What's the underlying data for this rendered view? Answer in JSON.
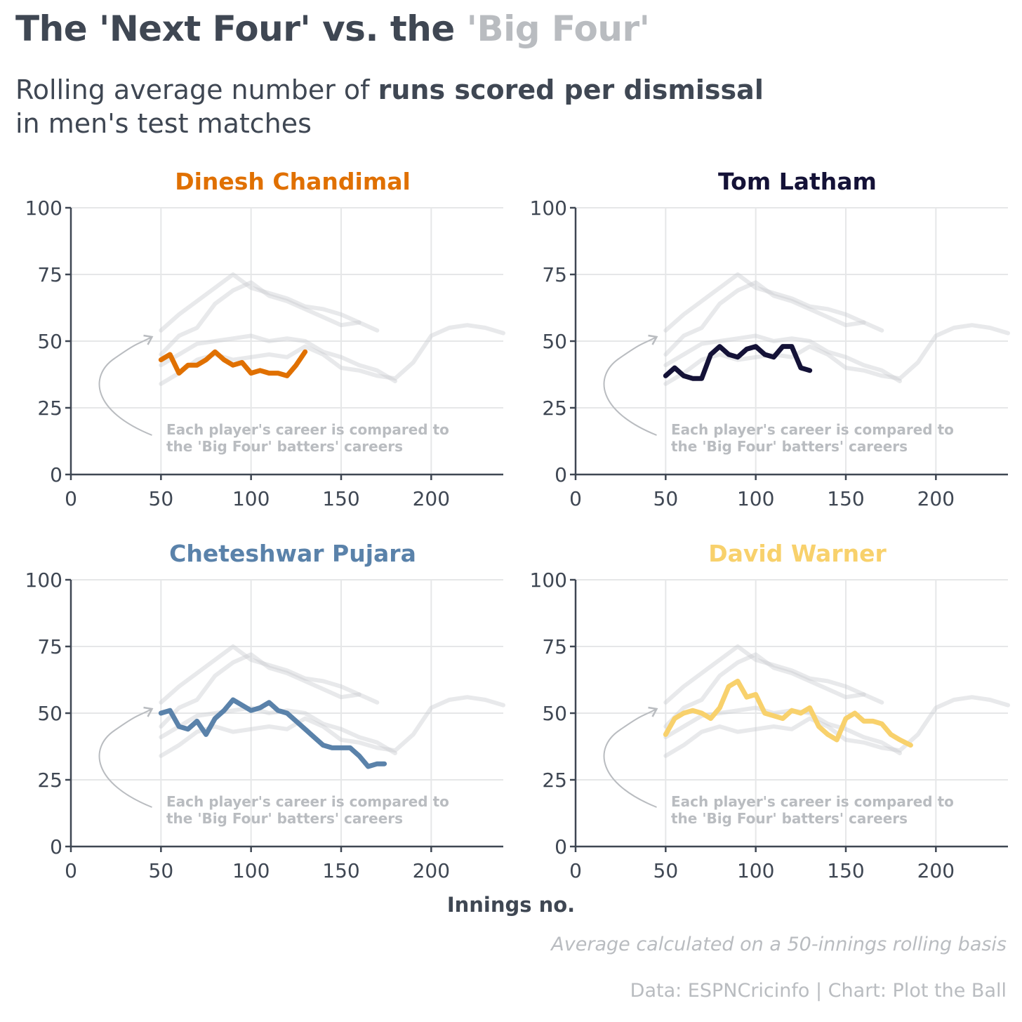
{
  "title": {
    "part1": "The 'Next Four' vs. the ",
    "part2": "'Big Four'"
  },
  "subtitle": {
    "part1": "Rolling average number of ",
    "bold": "runs scored per dismissal",
    "part2": "in men's test matches"
  },
  "annotation": {
    "line1": "Each player's career is compared to",
    "line2": "the 'Big Four' batters' careers"
  },
  "x_axis_label": "Innings no.",
  "note": "Average calculated on a 50-innings rolling basis",
  "source": "Data: ESPNCricinfo | Chart: Plot the Ball",
  "colors": {
    "text": "#3f4753",
    "muted": "#b9bcc0",
    "grid": "#e6e7e8",
    "big_four": "#c8cbcf"
  },
  "chart_data": [
    {
      "type": "line",
      "title": "Dinesh Chandimal",
      "color": "#e07000",
      "xlim": [
        0,
        240
      ],
      "ylim": [
        0,
        100
      ],
      "xticks": [
        0,
        50,
        100,
        150,
        200
      ],
      "yticks": [
        0,
        25,
        50,
        75,
        100
      ],
      "x": [
        50,
        55,
        60,
        65,
        70,
        75,
        80,
        85,
        90,
        95,
        100,
        105,
        110,
        115,
        120,
        125,
        130
      ],
      "y": [
        43,
        45,
        38,
        41,
        41,
        43,
        46,
        43,
        41,
        42,
        38,
        39,
        38,
        38,
        37,
        41,
        46
      ]
    },
    {
      "type": "line",
      "title": "Tom Latham",
      "color": "#141237",
      "xlim": [
        0,
        240
      ],
      "ylim": [
        0,
        100
      ],
      "xticks": [
        0,
        50,
        100,
        150,
        200
      ],
      "yticks": [
        0,
        25,
        50,
        75,
        100
      ],
      "x": [
        50,
        55,
        60,
        65,
        70,
        75,
        80,
        85,
        90,
        95,
        100,
        105,
        110,
        115,
        120,
        125,
        130
      ],
      "y": [
        37,
        40,
        37,
        36,
        36,
        45,
        48,
        45,
        44,
        47,
        48,
        45,
        44,
        48,
        48,
        40,
        39
      ]
    },
    {
      "type": "line",
      "title": "Cheteshwar Pujara",
      "color": "#5a82aa",
      "xlim": [
        0,
        240
      ],
      "ylim": [
        0,
        100
      ],
      "xticks": [
        0,
        50,
        100,
        150,
        200
      ],
      "yticks": [
        0,
        25,
        50,
        75,
        100
      ],
      "x": [
        50,
        55,
        60,
        65,
        70,
        75,
        80,
        85,
        90,
        95,
        100,
        105,
        110,
        115,
        120,
        125,
        130,
        135,
        140,
        145,
        150,
        155,
        160,
        165,
        170,
        174
      ],
      "y": [
        50,
        51,
        45,
        44,
        47,
        42,
        48,
        51,
        55,
        53,
        51,
        52,
        54,
        51,
        50,
        47,
        44,
        41,
        38,
        37,
        37,
        37,
        34,
        30,
        31,
        31
      ]
    },
    {
      "type": "line",
      "title": "David Warner",
      "color": "#f8d16c",
      "xlim": [
        0,
        240
      ],
      "ylim": [
        0,
        100
      ],
      "xticks": [
        0,
        50,
        100,
        150,
        200
      ],
      "yticks": [
        0,
        25,
        50,
        75,
        100
      ],
      "x": [
        50,
        55,
        60,
        65,
        70,
        75,
        80,
        85,
        90,
        95,
        100,
        105,
        110,
        115,
        120,
        125,
        130,
        135,
        140,
        145,
        150,
        155,
        160,
        165,
        170,
        175,
        180,
        186
      ],
      "y": [
        42,
        48,
        50,
        51,
        50,
        48,
        52,
        60,
        62,
        56,
        57,
        50,
        49,
        48,
        51,
        50,
        52,
        45,
        42,
        40,
        48,
        50,
        47,
        47,
        46,
        42,
        40,
        38
      ]
    }
  ],
  "big_four_series": [
    {
      "name": "",
      "x": [
        50,
        60,
        70,
        80,
        90,
        100,
        110,
        120,
        130,
        140,
        150,
        160,
        170,
        180,
        190,
        200,
        210,
        220,
        230,
        240
      ],
      "y": [
        34,
        38,
        43,
        45,
        43,
        44,
        45,
        44,
        48,
        45,
        40,
        39,
        37,
        36,
        42,
        52,
        55,
        56,
        55,
        53
      ]
    },
    {
      "name": "",
      "x": [
        50,
        60,
        70,
        80,
        90,
        100,
        110,
        120,
        130,
        140,
        150,
        160,
        170,
        180
      ],
      "y": [
        41,
        45,
        49,
        50,
        51,
        52,
        50,
        51,
        50,
        46,
        44,
        41,
        39,
        35
      ]
    },
    {
      "name": "",
      "x": [
        50,
        60,
        70,
        80,
        90,
        100,
        110,
        120,
        130,
        140,
        150,
        160,
        170
      ],
      "y": [
        54,
        60,
        65,
        70,
        75,
        70,
        68,
        66,
        63,
        62,
        60,
        57,
        54
      ]
    },
    {
      "name": "",
      "x": [
        50,
        60,
        70,
        80,
        90,
        100,
        110,
        120,
        130,
        140,
        150,
        160
      ],
      "y": [
        45,
        52,
        55,
        64,
        69,
        72,
        67,
        65,
        62,
        59,
        56,
        57
      ]
    }
  ]
}
